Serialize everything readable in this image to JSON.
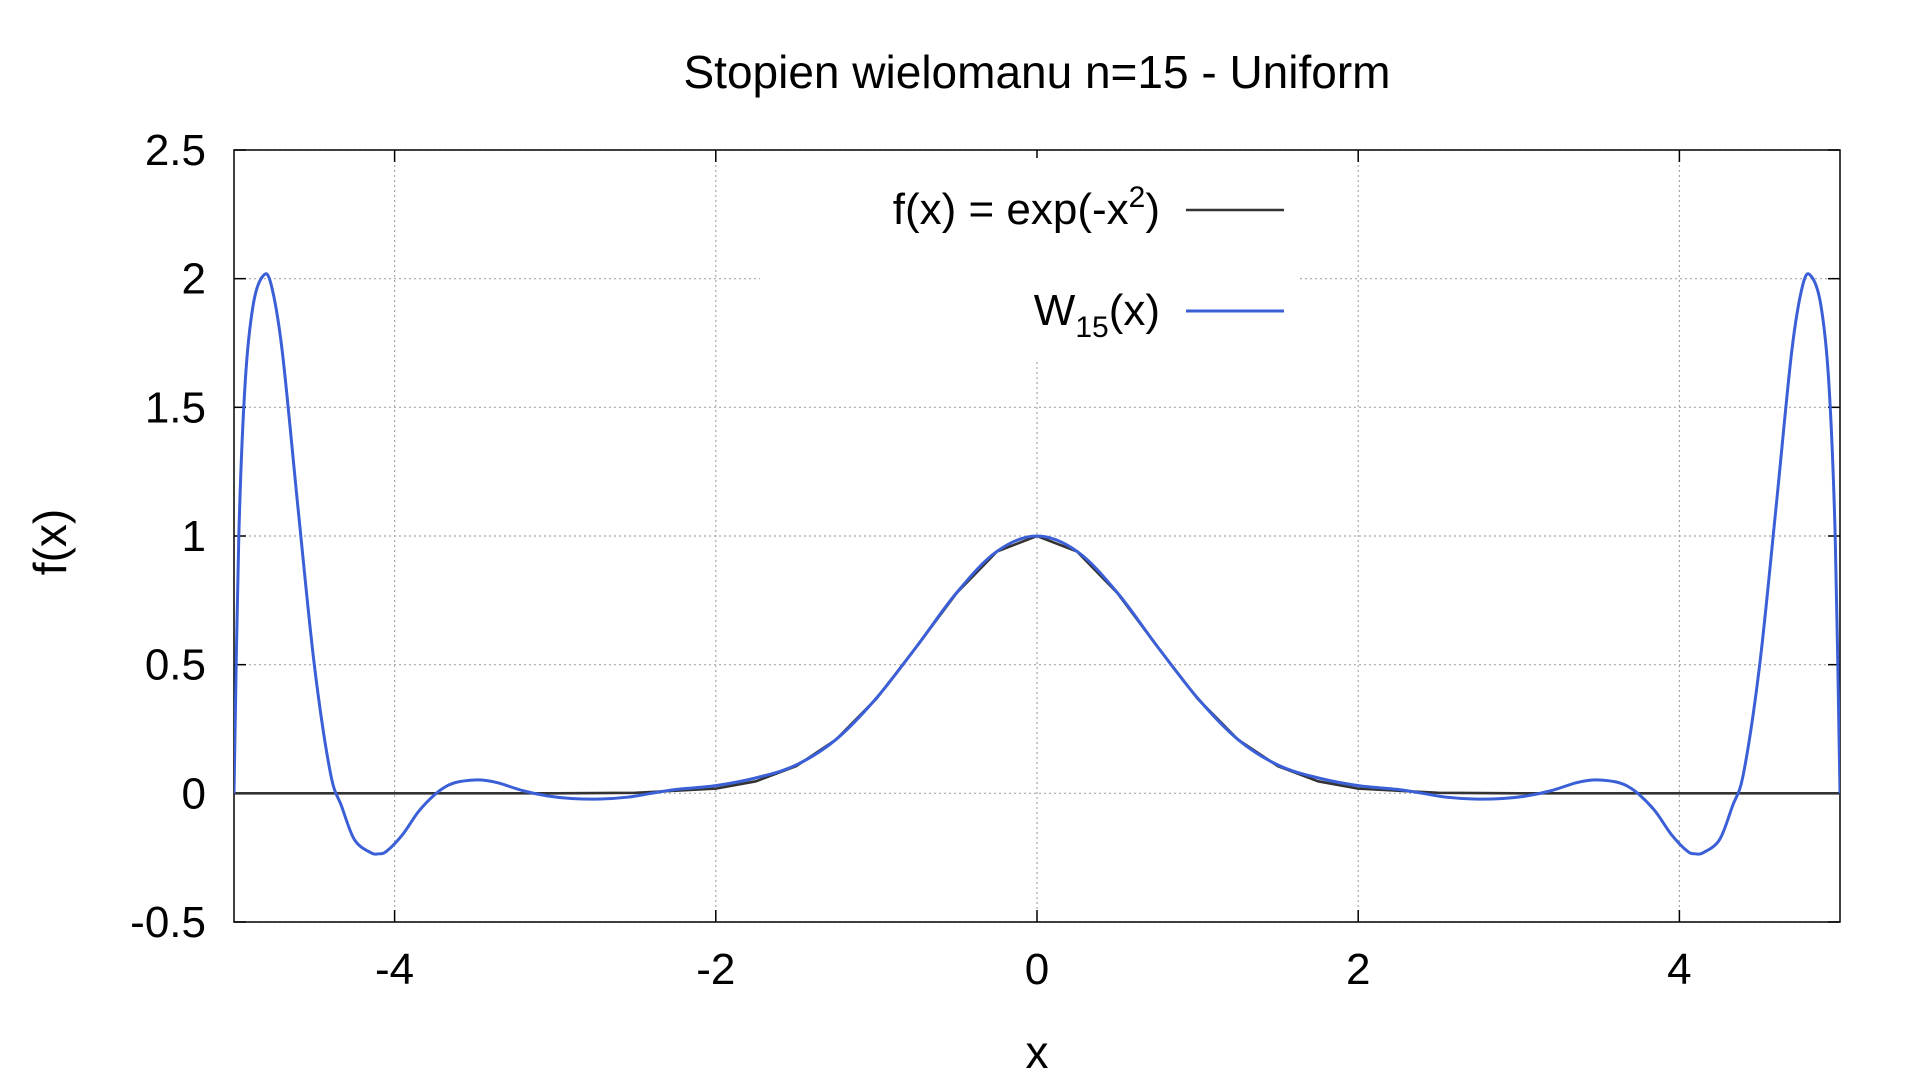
{
  "chart_data": {
    "type": "line",
    "title": "Stopien wielomanu n=15 - Uniform",
    "xlabel": "x",
    "ylabel": "f(x)",
    "xlim": [
      -5,
      5
    ],
    "ylim": [
      -0.5,
      2.5
    ],
    "x_ticks": [
      -4,
      -2,
      0,
      2,
      4
    ],
    "x_tick_labels": [
      "-4",
      "-2",
      "0",
      "2",
      "4"
    ],
    "y_ticks": [
      -0.5,
      0,
      0.5,
      1,
      1.5,
      2,
      2.5
    ],
    "y_tick_labels": [
      "-0.5",
      "0",
      "0.5",
      "1",
      "1.5",
      "2",
      "2.5"
    ],
    "grid": true,
    "legend_position": "top-center",
    "series": [
      {
        "name": "f(x) = exp(-x²)",
        "legend_main": "f(x) = exp(-x",
        "legend_sup": "2",
        "legend_tail": ")",
        "color": "#333333",
        "x": [
          -5,
          -4.5,
          -4,
          -3.5,
          -3,
          -2.5,
          -2,
          -1.75,
          -1.5,
          -1.25,
          -1,
          -0.75,
          -0.5,
          -0.25,
          0,
          0.25,
          0.5,
          0.75,
          1,
          1.25,
          1.5,
          1.75,
          2,
          2.5,
          3,
          3.5,
          4,
          4.5,
          5
        ],
        "y": [
          0,
          0,
          0,
          0,
          0.0001,
          0.0019,
          0.0183,
          0.0468,
          0.1054,
          0.2096,
          0.3679,
          0.5698,
          0.7788,
          0.9394,
          1,
          0.9394,
          0.7788,
          0.5698,
          0.3679,
          0.2096,
          0.1054,
          0.0468,
          0.0183,
          0.0019,
          0.0001,
          0,
          0,
          0,
          0
        ]
      },
      {
        "name": "W15(x)",
        "legend_main": "W",
        "legend_sub": "15",
        "legend_tail": "(x)",
        "color": "#3b5fd6",
        "x": [
          -5,
          -4.97,
          -4.93,
          -4.88,
          -4.82,
          -4.77,
          -4.7,
          -4.6,
          -4.5,
          -4.4,
          -4.33,
          -4.25,
          -4.15,
          -4.1,
          -4.05,
          -3.95,
          -3.85,
          -3.75,
          -3.67,
          -3.6,
          -3.5,
          -3.43,
          -3.35,
          -3.2,
          -3.05,
          -2.9,
          -2.72,
          -2.55,
          -2.4,
          -2.25,
          -2.0,
          -1.75,
          -1.5,
          -1.25,
          -1.0,
          -0.75,
          -0.5,
          -0.25,
          0,
          0.25,
          0.5,
          0.75,
          1.0,
          1.25,
          1.5,
          1.75,
          2.0,
          2.25,
          2.4,
          2.55,
          2.72,
          2.9,
          3.05,
          3.2,
          3.35,
          3.43,
          3.5,
          3.6,
          3.67,
          3.75,
          3.85,
          3.95,
          4.05,
          4.1,
          4.15,
          4.25,
          4.33,
          4.4,
          4.5,
          4.6,
          4.7,
          4.77,
          4.82,
          4.88,
          4.93,
          4.97,
          5
        ],
        "y": [
          0,
          1.0,
          1.6,
          1.9,
          2.01,
          1.98,
          1.72,
          1.1,
          0.5,
          0.08,
          -0.05,
          -0.18,
          -0.23,
          -0.235,
          -0.225,
          -0.16,
          -0.07,
          -0.005,
          0.03,
          0.045,
          0.052,
          0.05,
          0.04,
          0.01,
          -0.01,
          -0.02,
          -0.022,
          -0.015,
          0.0,
          0.015,
          0.03,
          0.06,
          0.11,
          0.21,
          0.37,
          0.57,
          0.78,
          0.94,
          1.0,
          0.94,
          0.78,
          0.57,
          0.37,
          0.21,
          0.11,
          0.06,
          0.03,
          0.015,
          0.0,
          -0.015,
          -0.022,
          -0.02,
          -0.01,
          0.01,
          0.04,
          0.05,
          0.052,
          0.045,
          0.03,
          -0.005,
          -0.07,
          -0.16,
          -0.225,
          -0.235,
          -0.23,
          -0.18,
          -0.05,
          0.08,
          0.5,
          1.1,
          1.72,
          1.98,
          2.01,
          1.9,
          1.6,
          1.0,
          0
        ]
      }
    ]
  }
}
